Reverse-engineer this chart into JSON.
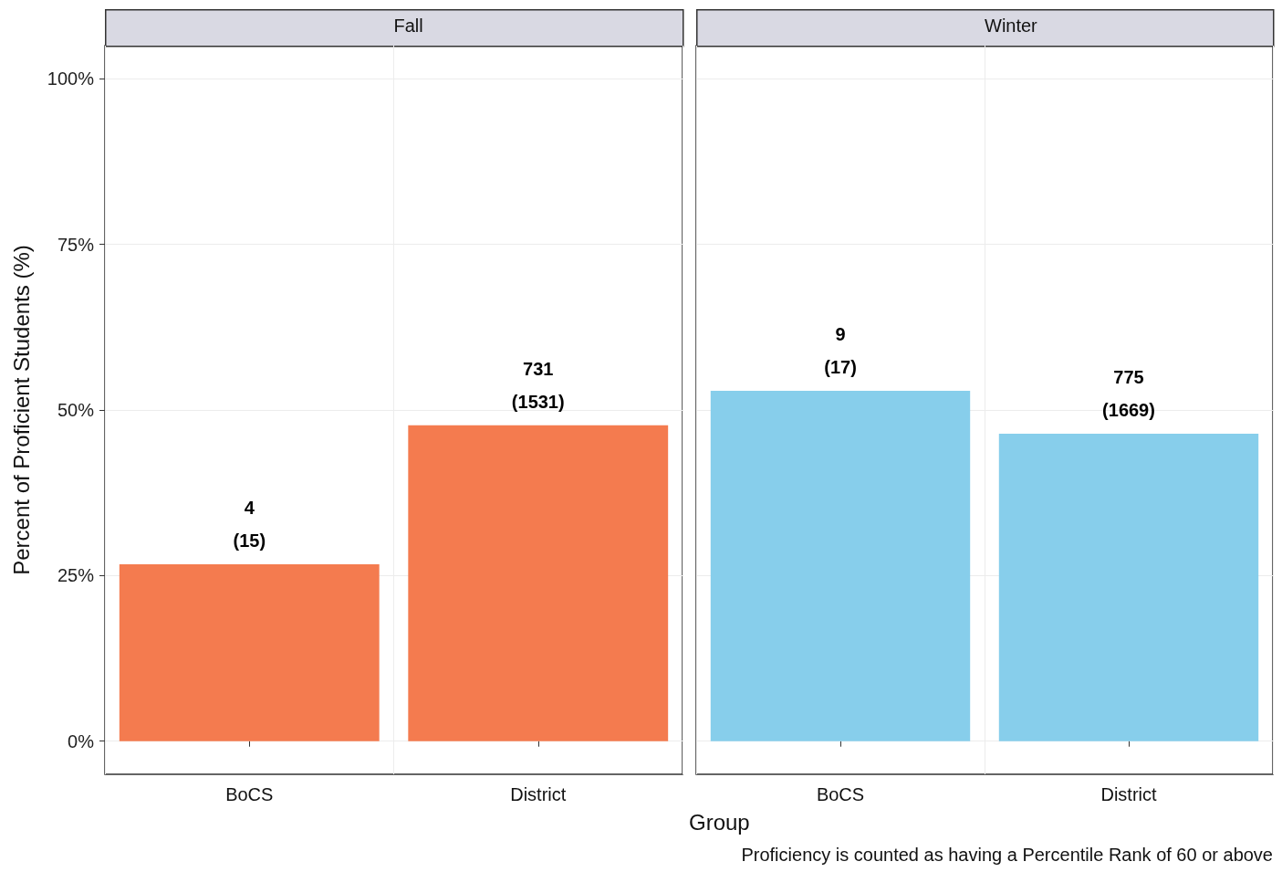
{
  "chart_data": [
    {
      "type": "bar",
      "title": "Fall",
      "xlabel": "Group",
      "ylabel": "Percent of Proficient Students (%)",
      "categories": [
        "BoCS",
        "District"
      ],
      "values": [
        26.7,
        47.7
      ],
      "color": "#f47b4f",
      "ylim": [
        -5,
        105
      ],
      "yticks": [
        {
          "value": 0,
          "label": "0%"
        },
        {
          "value": 25,
          "label": "25%"
        },
        {
          "value": 50,
          "label": "50%"
        },
        {
          "value": 75,
          "label": "75%"
        },
        {
          "value": 100,
          "label": "100%"
        }
      ],
      "grid": true,
      "annotations": [
        {
          "text": "4\n(15)",
          "x": "BoCS",
          "y": 26.7
        },
        {
          "text": "731\n(1531)",
          "x": "District",
          "y": 47.7
        }
      ]
    },
    {
      "type": "bar",
      "title": "Winter",
      "categories": [
        "BoCS",
        "District"
      ],
      "values": [
        52.9,
        46.4
      ],
      "color": "#87ceeb",
      "ylim": [
        -5,
        105
      ],
      "yticks": [
        0,
        25,
        50,
        75,
        100
      ],
      "grid": true,
      "tick_labels": "x",
      "annotations": [
        {
          "text": "9\n(17)",
          "x": "BoCS",
          "y": 52.9
        },
        {
          "text": "775\n(1669)",
          "x": "District",
          "y": 46.4
        },
        "Proficiency is counted as having a Percentile Rank of 60 or above"
      ]
    }
  ]
}
